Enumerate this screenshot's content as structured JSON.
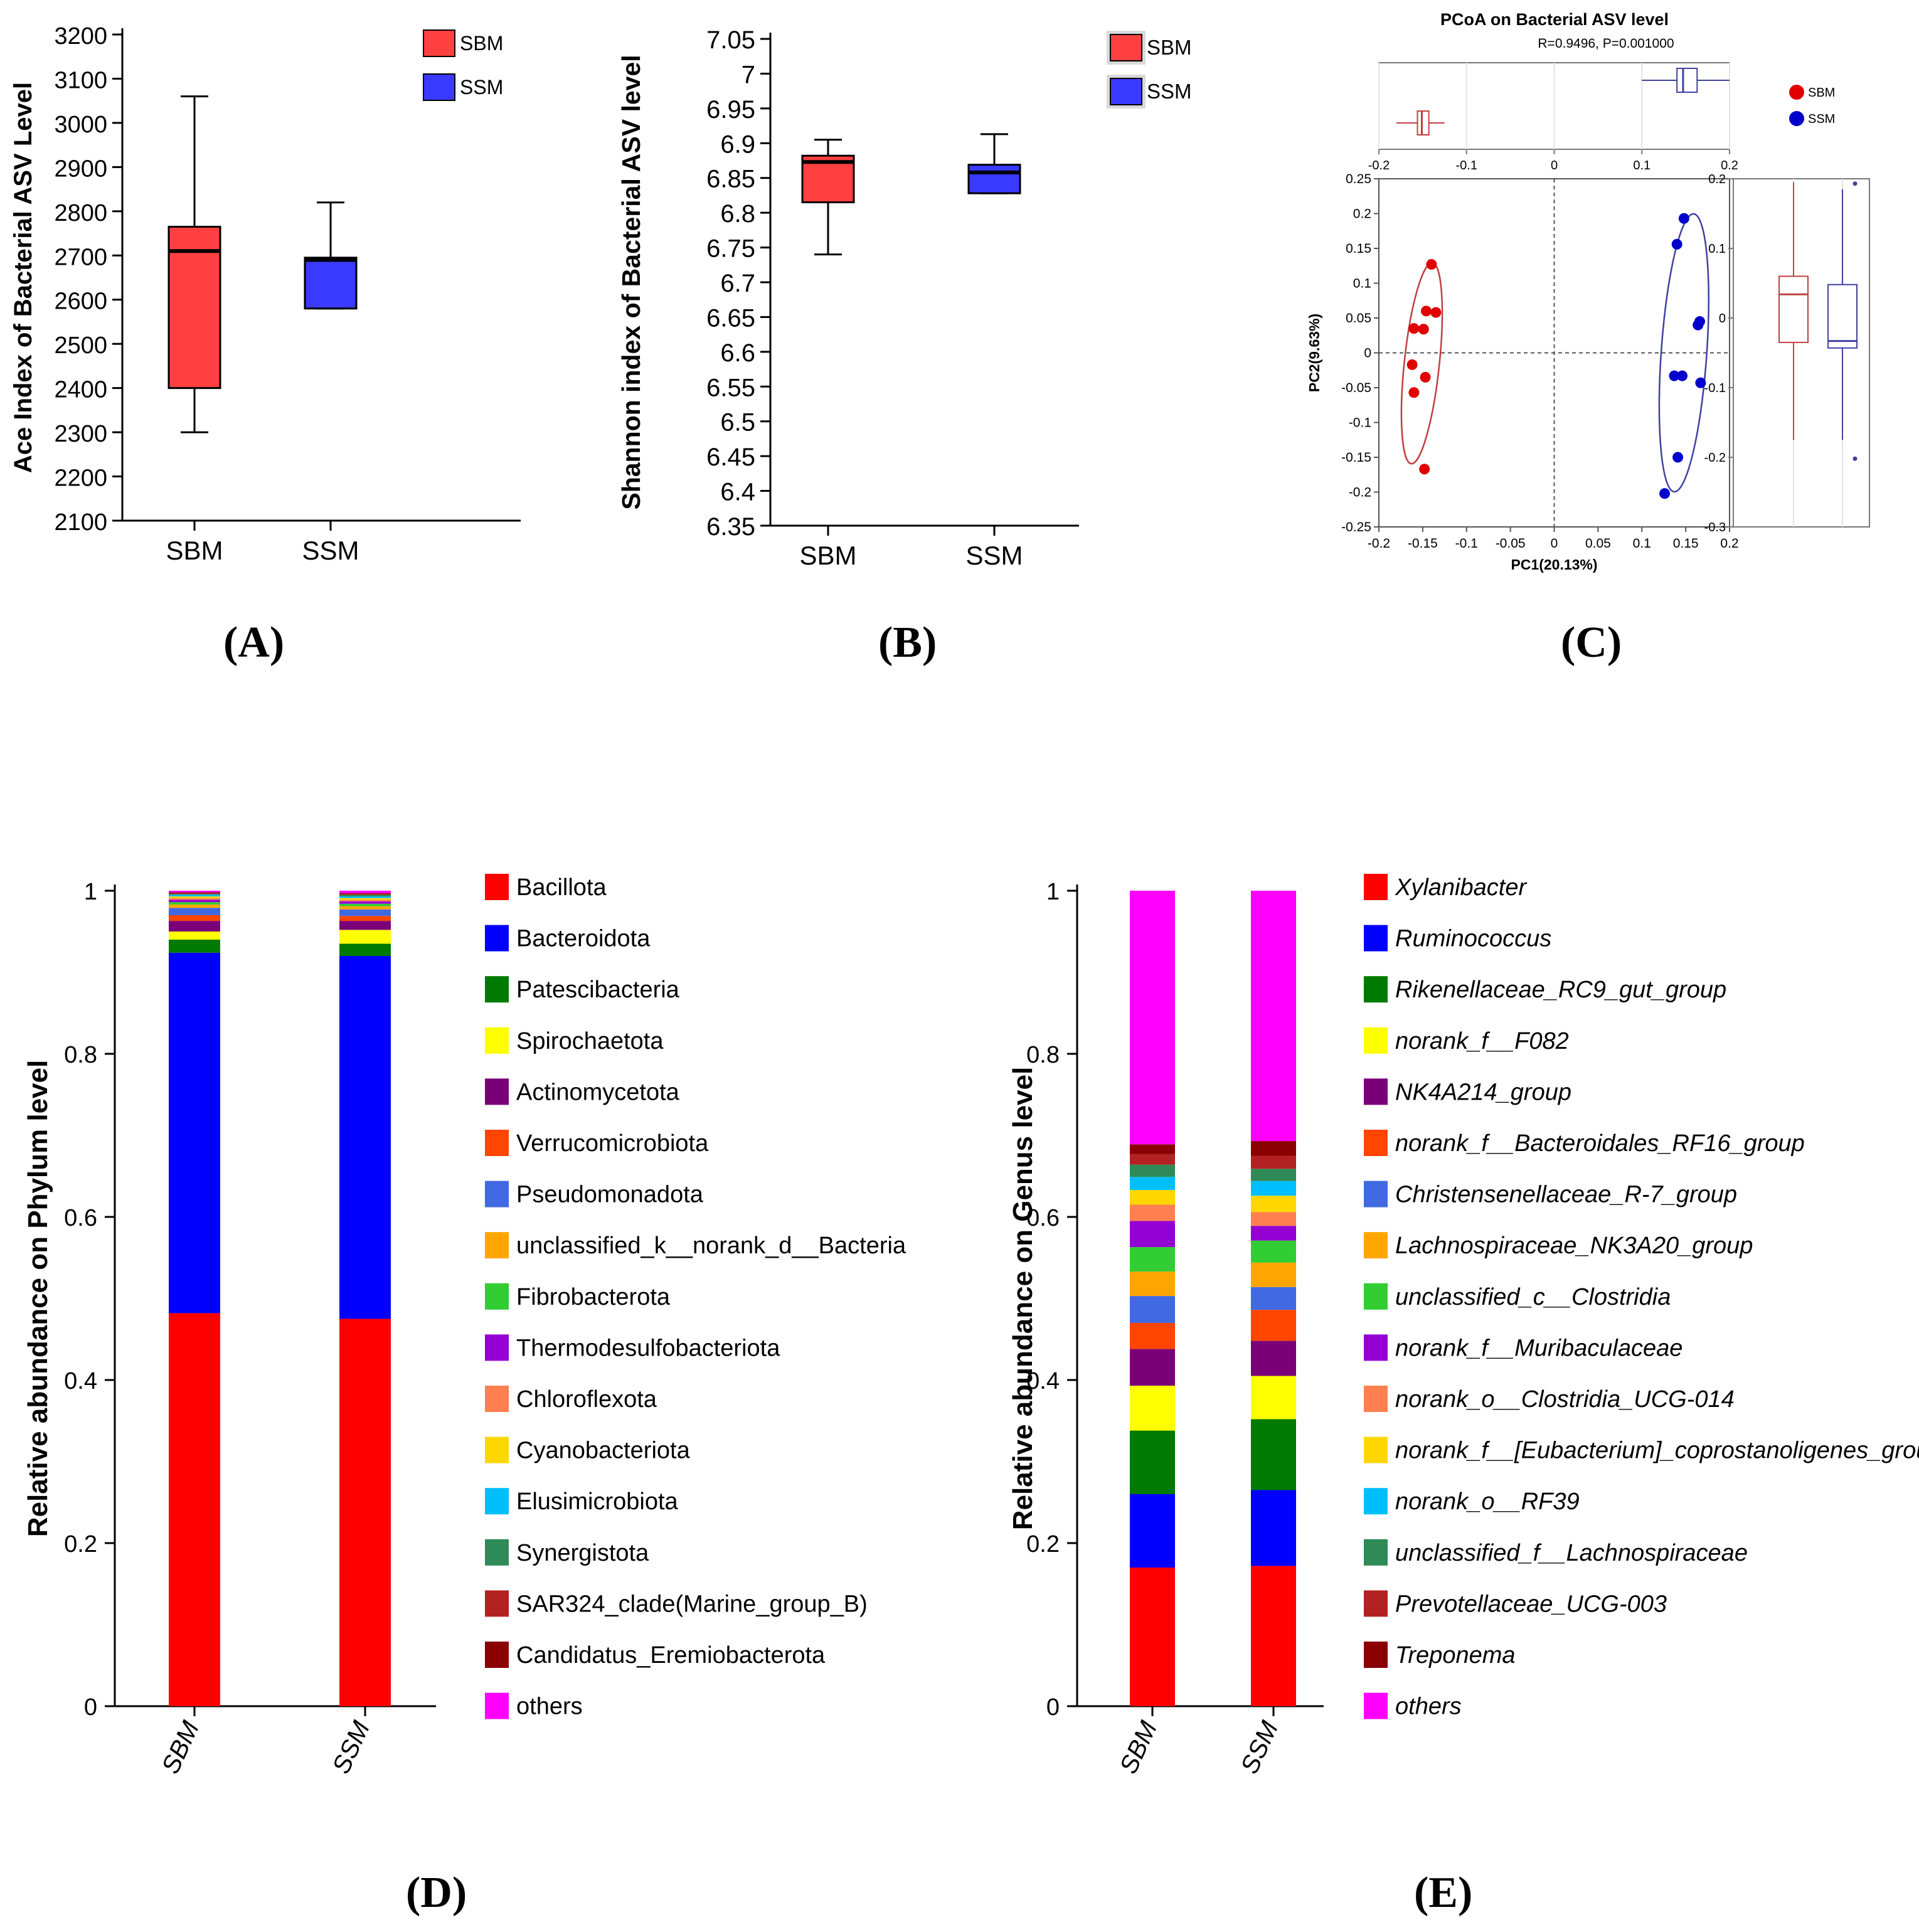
{
  "colors": {
    "red": "#ff0000",
    "blue": "#0000ff",
    "sbm_box": "#ff4040",
    "ssm_box": "#3a3aff",
    "pcoa_red": "#e00000",
    "pcoa_blue": "#0000cc",
    "pcoa_red_line": "#c04040",
    "pcoa_blue_line": "#4040a0"
  },
  "panel_labels": {
    "A": "(A)",
    "B": "(B)",
    "C": "(C)",
    "D": "(D)",
    "E": "(E)"
  },
  "chart_data": [
    {
      "id": "A",
      "type": "box",
      "title": "",
      "ylabel": "Ace Index of Bacterial ASV Level",
      "ylim": [
        2100,
        3200
      ],
      "yticks": [
        "2100",
        "2200",
        "2300",
        "2400",
        "2500",
        "2600",
        "2700",
        "2800",
        "2900",
        "3000",
        "3100",
        "3200"
      ],
      "categories": [
        "SBM",
        "SSM"
      ],
      "legend": [
        "SBM",
        "SSM"
      ],
      "boxes": [
        {
          "name": "SBM",
          "min": 2300,
          "q1": 2400,
          "median": 2710,
          "q3": 2765,
          "max": 3060
        },
        {
          "name": "SSM",
          "min": 2580,
          "q1": 2580,
          "median": 2690,
          "q3": 2695,
          "max": 2820
        }
      ]
    },
    {
      "id": "B",
      "type": "box",
      "title": "",
      "ylabel": "Shannon index of Bacterial ASV level",
      "ylim": [
        6.35,
        7.05
      ],
      "yticks": [
        "6.35",
        "6.4",
        "6.45",
        "6.5",
        "6.55",
        "6.6",
        "6.65",
        "6.7",
        "6.75",
        "6.8",
        "6.85",
        "6.9",
        "6.95",
        "7",
        "7.05"
      ],
      "categories": [
        "SBM",
        "SSM"
      ],
      "legend": [
        "SBM",
        "SSM"
      ],
      "boxes": [
        {
          "name": "SBM",
          "min": 6.74,
          "q1": 6.815,
          "median": 6.873,
          "q3": 6.882,
          "max": 6.905
        },
        {
          "name": "SSM",
          "min": 6.828,
          "q1": 6.828,
          "median": 6.858,
          "q3": 6.869,
          "max": 6.913
        }
      ]
    },
    {
      "id": "C",
      "type": "scatter",
      "title": "PCoA on Bacterial ASV level",
      "subtitle": "R=0.9496, P=0.001000",
      "xlabel": "PC1(20.13%)",
      "ylabel": "PC2(9.63%)",
      "xlim": [
        -0.2,
        0.2
      ],
      "ylim": [
        -0.25,
        0.25
      ],
      "xticks": [
        "-0.2",
        "-0.15",
        "-0.1",
        "-0.05",
        "0",
        "0.05",
        "0.1",
        "0.15",
        "0.2"
      ],
      "yticks": [
        "-0.25",
        "-0.2",
        "-0.15",
        "-0.1",
        "-0.05",
        "0",
        "0.05",
        "0.1",
        "0.15",
        "0.2",
        "0.25"
      ],
      "top_xticks": [
        "-0.2",
        "-0.1",
        "0",
        "0.1",
        "0.2"
      ],
      "right_yticks": [
        "-0.3",
        "-0.2",
        "-0.1",
        "0",
        "0.1",
        "0.2"
      ],
      "legend": [
        "SBM",
        "SSM"
      ],
      "series": [
        {
          "name": "SBM",
          "points": [
            [
              -0.14,
              0.127
            ],
            [
              -0.146,
              0.06
            ],
            [
              -0.135,
              0.058
            ],
            [
              -0.149,
              0.034
            ],
            [
              -0.16,
              0.035
            ],
            [
              -0.162,
              -0.017
            ],
            [
              -0.147,
              -0.035
            ],
            [
              -0.16,
              -0.057
            ],
            [
              -0.148,
              -0.167
            ]
          ]
        },
        {
          "name": "SSM",
          "points": [
            [
              0.148,
              0.193
            ],
            [
              0.14,
              0.156
            ],
            [
              0.166,
              0.045
            ],
            [
              0.164,
              0.04
            ],
            [
              0.137,
              -0.033
            ],
            [
              0.146,
              -0.033
            ],
            [
              0.167,
              -0.043
            ],
            [
              0.141,
              -0.15
            ],
            [
              0.126,
              -0.202
            ]
          ]
        }
      ],
      "ellipses": [
        {
          "name": "SBM",
          "cx": -0.151,
          "cy": -0.015,
          "rx": 0.02,
          "ry": 0.145,
          "angle": 6
        },
        {
          "name": "SSM",
          "cx": 0.148,
          "cy": 0.0,
          "rx": 0.026,
          "ry": 0.2,
          "angle": 4
        }
      ],
      "top_boxes": [
        {
          "name": "SBM",
          "min": -0.18,
          "q1": -0.156,
          "median": -0.151,
          "q3": -0.143,
          "max": -0.125
        },
        {
          "name": "SSM",
          "min": 0.1,
          "q1": 0.14,
          "median": 0.147,
          "q3": 0.163,
          "max": 0.2
        }
      ],
      "right_boxes": [
        {
          "name": "SBM",
          "min": -0.175,
          "q1": -0.035,
          "median": 0.034,
          "q3": 0.06,
          "max": 0.195
        },
        {
          "name": "SSM",
          "min": -0.175,
          "q1": -0.043,
          "median": -0.033,
          "q3": 0.048,
          "max": 0.185,
          "outliers": [
            0.193,
            -0.202
          ]
        }
      ]
    },
    {
      "id": "D",
      "type": "bar",
      "stacked": true,
      "ylabel": "Relative abundance on Phylum level",
      "ylim": [
        0,
        1
      ],
      "yticks": [
        "0",
        "0.2",
        "0.4",
        "0.6",
        "0.8",
        "1"
      ],
      "categories": [
        "SBM",
        "SSM"
      ],
      "series": [
        {
          "name": "Bacillota",
          "color": "#ff0000",
          "values": [
            0.482,
            0.475
          ]
        },
        {
          "name": "Bacteroidota",
          "color": "#0000ff",
          "values": [
            0.442,
            0.445
          ]
        },
        {
          "name": "Patescibacteria",
          "color": "#007a00",
          "values": [
            0.016,
            0.015
          ]
        },
        {
          "name": "Spirochaetota",
          "color": "#ffff00",
          "values": [
            0.01,
            0.017
          ]
        },
        {
          "name": "Actinomycetota",
          "color": "#7a007a",
          "values": [
            0.013,
            0.011
          ]
        },
        {
          "name": "Verrucomicrobiota",
          "color": "#ff4500",
          "values": [
            0.007,
            0.006
          ]
        },
        {
          "name": "Pseudomonadota",
          "color": "#4169e1",
          "values": [
            0.009,
            0.008
          ]
        },
        {
          "name": "unclassified_k__norank_d__Bacteria",
          "color": "#ffa500",
          "values": [
            0.004,
            0.004
          ]
        },
        {
          "name": "Fibrobacterota",
          "color": "#32cd32",
          "values": [
            0.003,
            0.003
          ]
        },
        {
          "name": "Thermodesulfobacteriota",
          "color": "#9400d3",
          "values": [
            0.003,
            0.003
          ]
        },
        {
          "name": "Chloroflexota",
          "color": "#ff7f50",
          "values": [
            0.002,
            0.002
          ]
        },
        {
          "name": "Cyanobacteriota",
          "color": "#ffd700",
          "values": [
            0.002,
            0.002
          ]
        },
        {
          "name": "Elusimicrobiota",
          "color": "#00bfff",
          "values": [
            0.002,
            0.002
          ]
        },
        {
          "name": "Synergistota",
          "color": "#2e8b57",
          "values": [
            0.001,
            0.002
          ]
        },
        {
          "name": "SAR324_clade(Marine_group_B)",
          "color": "#b22222",
          "values": [
            0.001,
            0.001
          ]
        },
        {
          "name": "Candidatus_Eremiobacterota",
          "color": "#8b0000",
          "values": [
            0.001,
            0.001
          ]
        },
        {
          "name": "others",
          "color": "#ff00ff",
          "values": [
            0.002,
            0.003
          ]
        }
      ]
    },
    {
      "id": "E",
      "type": "bar",
      "stacked": true,
      "ylabel": "Relative abundance on Genus level",
      "ylim": [
        0,
        1
      ],
      "yticks": [
        "0",
        "0.2",
        "0.4",
        "0.6",
        "0.8",
        "1"
      ],
      "categories": [
        "SBM",
        "SSM"
      ],
      "series": [
        {
          "name": "Xylanibacter",
          "color": "#ff0000",
          "values": [
            0.17,
            0.172
          ]
        },
        {
          "name": "Ruminococcus",
          "color": "#0000ff",
          "values": [
            0.09,
            0.093
          ]
        },
        {
          "name": "Rikenellaceae_RC9_gut_group",
          "color": "#007a00",
          "values": [
            0.078,
            0.087
          ]
        },
        {
          "name": "norank_f__F082",
          "color": "#ffff00",
          "values": [
            0.055,
            0.053
          ]
        },
        {
          "name": "NK4A214_group",
          "color": "#7a007a",
          "values": [
            0.045,
            0.043
          ]
        },
        {
          "name": "norank_f__Bacteroidales_RF16_group",
          "color": "#ff4500",
          "values": [
            0.032,
            0.038
          ]
        },
        {
          "name": "Christensenellaceae_R-7_group",
          "color": "#4169e1",
          "values": [
            0.033,
            0.028
          ]
        },
        {
          "name": "Lachnospiraceae_NK3A20_group",
          "color": "#ffa500",
          "values": [
            0.03,
            0.03
          ]
        },
        {
          "name": "unclassified_c__Clostridia",
          "color": "#32cd32",
          "values": [
            0.03,
            0.027
          ]
        },
        {
          "name": "norank_f__Muribaculaceae",
          "color": "#9400d3",
          "values": [
            0.032,
            0.018
          ]
        },
        {
          "name": "norank_o__Clostridia_UCG-014",
          "color": "#ff7f50",
          "values": [
            0.02,
            0.017
          ]
        },
        {
          "name": "norank_f__[Eubacterium]_coprostanoligenes_group",
          "color": "#ffd700",
          "values": [
            0.018,
            0.02
          ]
        },
        {
          "name": "norank_o__RF39",
          "color": "#00bfff",
          "values": [
            0.016,
            0.018
          ]
        },
        {
          "name": "unclassified_f__Lachnospiraceae",
          "color": "#2e8b57",
          "values": [
            0.015,
            0.015
          ]
        },
        {
          "name": "Prevotellaceae_UCG-003",
          "color": "#b22222",
          "values": [
            0.013,
            0.016
          ]
        },
        {
          "name": "Treponema",
          "color": "#8b0000",
          "values": [
            0.012,
            0.018
          ]
        },
        {
          "name": "others",
          "color": "#ff00ff",
          "values": [
            0.306,
            0.307
          ]
        }
      ]
    }
  ]
}
